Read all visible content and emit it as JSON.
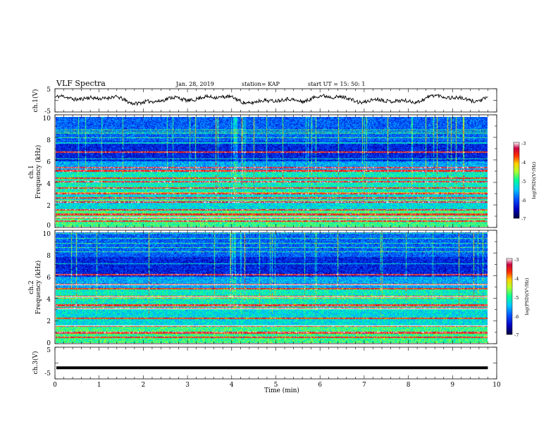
{
  "header": {
    "title": "VLF Spectra",
    "date": "Jan. 28, 2019",
    "station": "station= KAP",
    "start": "start UT =  15: 50: 1"
  },
  "colors": {
    "spectrogram_gradient": [
      "#000040",
      "#0000c0",
      "#0050ff",
      "#00c8ff",
      "#00ff9a",
      "#b4ff2a",
      "#ffd000",
      "#ff3000",
      "#c80040",
      "#ffffff"
    ]
  },
  "chart_data": [
    {
      "type": "line",
      "name": "ch1-waveform",
      "ylabel": "ch.1(V)",
      "xlim": [
        0,
        10
      ],
      "ylim": [
        -5,
        5
      ],
      "yticks": [
        "5",
        "-5"
      ],
      "data_extent_min": [
        0,
        9.8
      ],
      "typical_range": [
        -2,
        3
      ]
    },
    {
      "type": "heatmap",
      "name": "ch1-spectrogram",
      "ylabel": "ch.1\nFrequency (kHz)",
      "xlim": [
        0,
        10
      ],
      "ylim": [
        0,
        10
      ],
      "yticks": [
        "0",
        "2",
        "4",
        "6",
        "8",
        "10"
      ],
      "colorbar": {
        "label": "log(PSD)(V²/Hz)",
        "range": [
          -7,
          -3
        ],
        "ticks": [
          "-3",
          "-4",
          "-5",
          "-6",
          "-7"
        ]
      },
      "high_power_bands_khz": [
        0.5,
        0.8,
        1.1,
        1.5,
        2.2,
        2.6,
        3.0,
        3.5,
        4.1,
        4.4,
        5.1,
        5.4,
        6.8
      ]
    },
    {
      "type": "heatmap",
      "name": "ch2-spectrogram",
      "ylabel": "ch.2\nFrequency (kHz)",
      "xlim": [
        0,
        10
      ],
      "ylim": [
        0,
        10
      ],
      "yticks": [
        "0",
        "2",
        "4",
        "6",
        "8",
        "10"
      ],
      "colorbar": {
        "label": "log(PSD)(V²/Hz)",
        "range": [
          -7,
          -3
        ],
        "ticks": [
          "-3",
          "-4",
          "-5",
          "-6",
          "-7"
        ]
      },
      "high_power_bands_khz": [
        0.5,
        0.9,
        1.5,
        2.2,
        3.1,
        3.4,
        4.2,
        4.9,
        5.3,
        6.2
      ]
    },
    {
      "type": "line",
      "name": "ch3-level",
      "ylabel": "ch.3(V)",
      "xlim": [
        0,
        10
      ],
      "ylim": [
        -5,
        5
      ],
      "yticks": [
        "5",
        "-5"
      ],
      "value": -1.5,
      "data_extent_min": [
        0,
        9.8
      ]
    }
  ],
  "xaxis": {
    "label": "Time (min)",
    "ticks": [
      "0",
      "1",
      "2",
      "3",
      "4",
      "5",
      "6",
      "7",
      "8",
      "9",
      "10"
    ]
  }
}
